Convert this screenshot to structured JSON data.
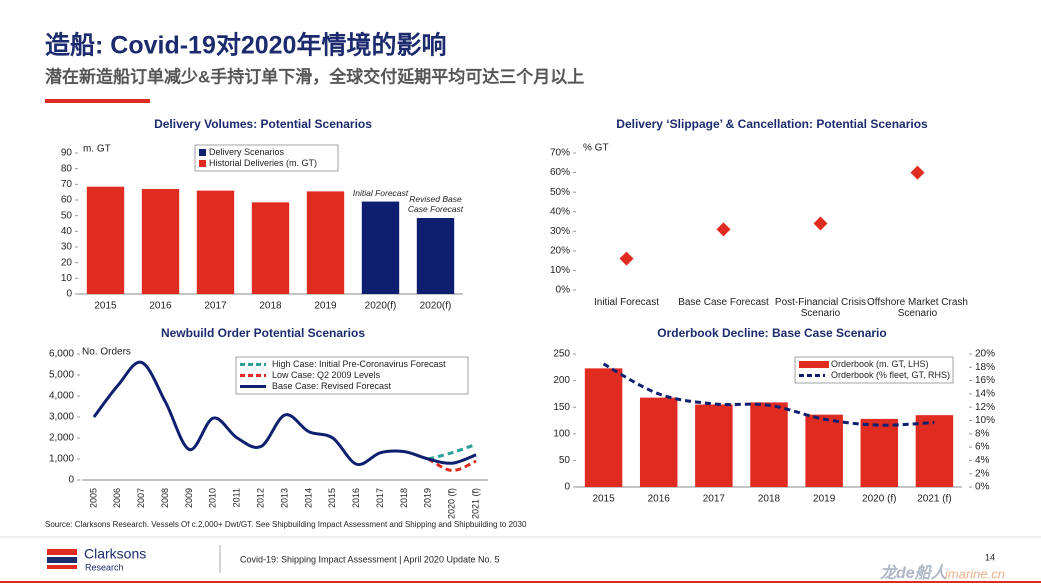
{
  "header": {
    "title": "造船: Covid-19对2020年情境的影响",
    "subtitle": "潜在新造船订单减少&手持订单下滑，全球交付延期平均可达三个月以上"
  },
  "chart_data": [
    {
      "type": "bar",
      "title": "Delivery Volumes: Potential Scenarios",
      "y_label": "m. GT",
      "categories": [
        "2015",
        "2016",
        "2017",
        "2018",
        "2019",
        "2020(f)",
        "2020(f)"
      ],
      "series": [
        {
          "name": "Delivery Scenarios",
          "color": "#0d1f6e",
          "values": [
            null,
            null,
            null,
            null,
            null,
            59,
            48.5
          ]
        },
        {
          "name": "Historial Deliveries (m. GT)",
          "color": "#e02b20",
          "values": [
            68.5,
            67,
            66,
            58.5,
            65.5,
            null,
            null
          ]
        }
      ],
      "annotations": [
        "Initial Forecast",
        "Revised Base Case Forecast"
      ],
      "ylim": [
        0,
        90
      ],
      "yticks": [
        0,
        10,
        20,
        30,
        40,
        50,
        60,
        70,
        80,
        90
      ]
    },
    {
      "type": "scatter",
      "title": "Delivery ‘Slippage’ & Cancellation: Potential Scenarios",
      "y_label": "% GT",
      "categories": [
        "Initial Forecast",
        "Base Case Forecast",
        "Post-Financial Crisis Scenario",
        "Offshore Market Crash Scenario"
      ],
      "values": [
        16,
        31,
        34,
        60
      ],
      "color": "#e02b20",
      "ylim": [
        0,
        70
      ],
      "yticks": [
        {
          "value": 0,
          "label": "0%"
        },
        {
          "value": 10,
          "label": "10%"
        },
        {
          "value": 20,
          "label": "20%"
        },
        {
          "value": 30,
          "label": "30%"
        },
        {
          "value": 40,
          "label": "40%"
        },
        {
          "value": 50,
          "label": "50%"
        },
        {
          "value": 60,
          "label": "60%"
        },
        {
          "value": 70,
          "label": "70%"
        }
      ]
    },
    {
      "type": "line",
      "title": "Newbuild Order Potential Scenarios",
      "y_label": "No. Orders",
      "categories": [
        "2005",
        "2006",
        "2007",
        "2008",
        "2009",
        "2010",
        "2011",
        "2012",
        "2013",
        "2014",
        "2015",
        "2016",
        "2017",
        "2018",
        "2019",
        "2020 (f)",
        "2021 (f)"
      ],
      "series": [
        {
          "name": "High Case: Initial Pre-Coronavirus Forecast",
          "color": "#2aa198",
          "dashed": true,
          "values": [
            null,
            null,
            null,
            null,
            null,
            null,
            null,
            null,
            null,
            null,
            null,
            null,
            null,
            null,
            1000,
            1300,
            1700
          ]
        },
        {
          "name": "Low Case: Q2 2009 Levels",
          "color": "#e02b20",
          "dashed": true,
          "values": [
            null,
            null,
            null,
            null,
            null,
            null,
            null,
            null,
            null,
            null,
            null,
            null,
            null,
            null,
            1000,
            450,
            900
          ]
        },
        {
          "name": "Base Case: Revised Forecast",
          "color": "#0d1f6e",
          "dashed": false,
          "values": [
            3000,
            4500,
            5600,
            3700,
            1450,
            2950,
            2000,
            1600,
            3100,
            2300,
            2000,
            750,
            1300,
            1350,
            1000,
            800,
            1200
          ]
        }
      ],
      "ylim": [
        0,
        6000
      ],
      "yticks": [
        0,
        {
          "value": 1000,
          "label": "1,000"
        },
        {
          "value": 2000,
          "label": "2,000"
        },
        {
          "value": 3000,
          "label": "3,000"
        },
        {
          "value": 4000,
          "label": "4,000"
        },
        {
          "value": 5000,
          "label": "5,000"
        },
        {
          "value": 6000,
          "label": "6,000"
        }
      ]
    },
    {
      "type": "combo",
      "title": "Orderbook Decline: Base Case Scenario",
      "categories": [
        "2015",
        "2016",
        "2017",
        "2018",
        "2019",
        "2020 (f)",
        "2021 (f)"
      ],
      "series": [
        {
          "name": "Orderbook (m. GT, LHS)",
          "type": "bar",
          "color": "#e02b20",
          "values": [
            223,
            168,
            155,
            159,
            136,
            128,
            135
          ]
        },
        {
          "name": "Orderbook (% fleet, GT, RHS)",
          "type": "line",
          "axis": "y2",
          "dashed": true,
          "color": "#0d1f6e",
          "values": [
            18.5,
            14,
            12.5,
            12.3,
            10.2,
            9.3,
            9.7
          ]
        }
      ],
      "ylim": [
        0,
        250
      ],
      "yticks": [
        0,
        50,
        100,
        150,
        200,
        250
      ],
      "y2lim": [
        0,
        20
      ],
      "y2ticks": [
        {
          "value": 0,
          "label": "0%"
        },
        {
          "value": 2,
          "label": "2%"
        },
        {
          "value": 4,
          "label": "4%"
        },
        {
          "value": 6,
          "label": "6%"
        },
        {
          "value": 8,
          "label": "8%"
        },
        {
          "value": 10,
          "label": "10%"
        },
        {
          "value": 12,
          "label": "12%"
        },
        {
          "value": 14,
          "label": "14%"
        },
        {
          "value": 16,
          "label": "16%"
        },
        {
          "value": 18,
          "label": "18%"
        },
        {
          "value": 20,
          "label": "20%"
        }
      ]
    }
  ],
  "footer": {
    "source": "Source: Clarksons Research. Vessels Of c.2,000+ Dwt/GT. See Shipbuilding Impact Assessment and Shipping and Shipbuilding to 2030",
    "logo": "Clarksons",
    "logo_sub": "Research",
    "report": "Covid-19: Shipping Impact Assessment | April 2020 Update No. 5",
    "page": "14",
    "watermark": "龙de船人",
    "watermark_site": "imarine.cn"
  }
}
